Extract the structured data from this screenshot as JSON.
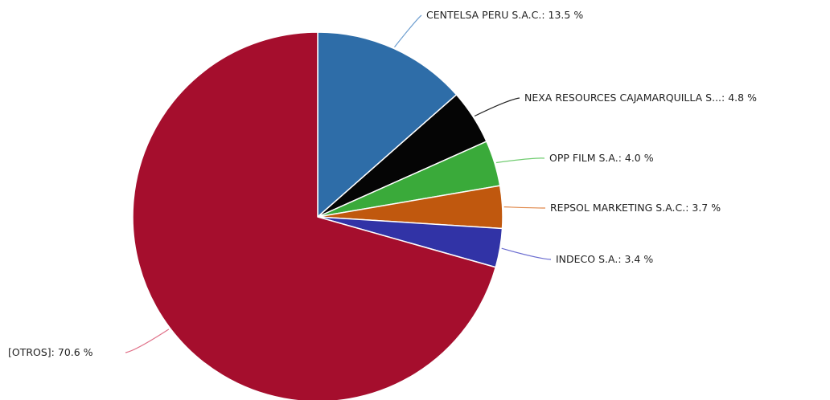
{
  "chart_data": {
    "type": "pie",
    "title": "",
    "legend": "none",
    "slices": [
      {
        "name": "CENTELSA PERU S.A.C.",
        "value": 13.5,
        "label": "CENTELSA PERU S.A.C.: 13.5 %",
        "color": "#2e6da8",
        "leader": "#6f9fd0"
      },
      {
        "name": "NEXA RESOURCES CAJAMARQUILLA S...",
        "value": 4.8,
        "label": "NEXA RESOURCES CAJAMARQUILLA S...: 4.8 %",
        "color": "#050505",
        "leader": "#222222"
      },
      {
        "name": "OPP FILM S.A.",
        "value": 4.0,
        "label": "OPP FILM S.A.: 4.0 %",
        "color": "#3aaa3a",
        "leader": "#70cc70"
      },
      {
        "name": "REPSOL MARKETING S.A.C.",
        "value": 3.7,
        "label": "REPSOL MARKETING S.A.C.: 3.7 %",
        "color": "#c0580e",
        "leader": "#e0884a"
      },
      {
        "name": "INDECO S.A.",
        "value": 3.4,
        "label": "INDECO S.A.: 3.4 %",
        "color": "#3133a6",
        "leader": "#6a6cd0"
      },
      {
        "name": "[OTROS]",
        "value": 70.6,
        "label": "[OTROS]: 70.6 %",
        "color": "#a50e2d",
        "leader": "#e07088"
      }
    ]
  }
}
